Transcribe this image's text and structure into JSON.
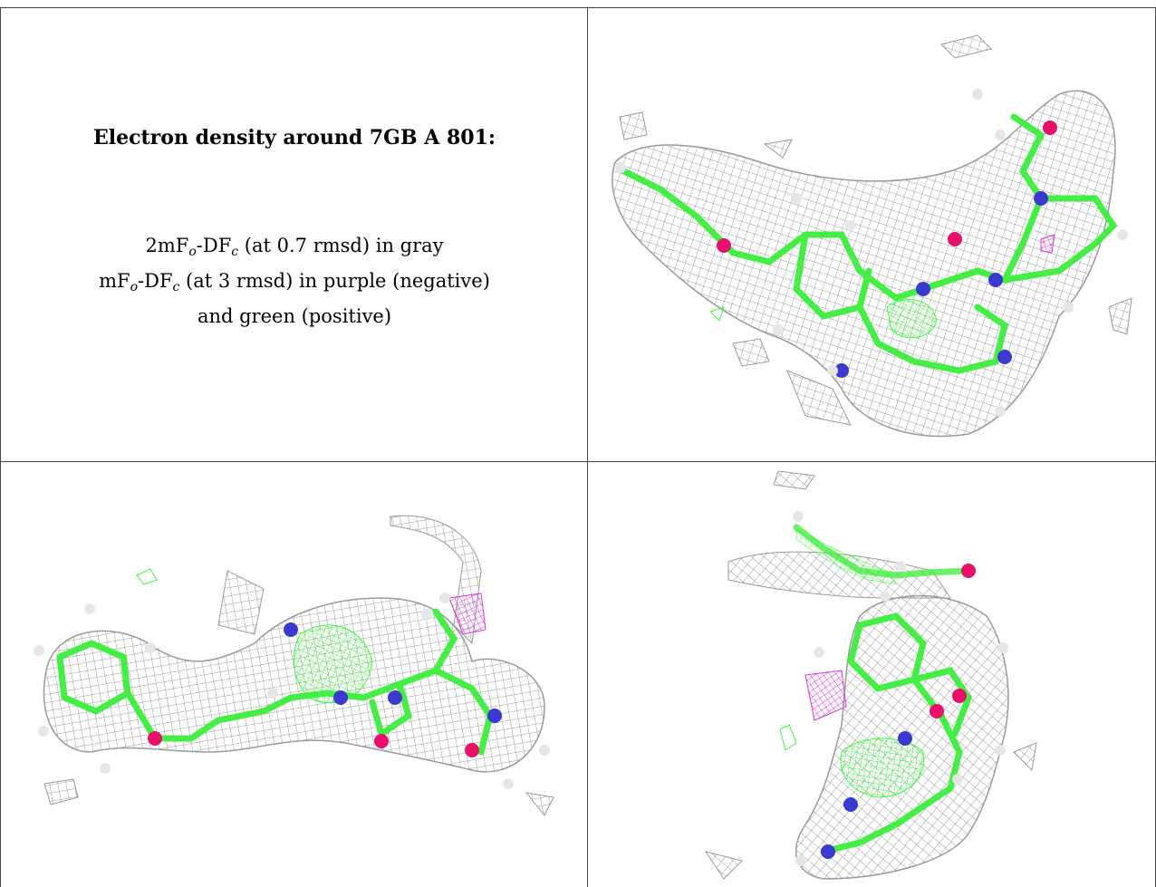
{
  "caption": {
    "title": "Electron density around 7GB A 801:",
    "line1_prefix": "2mF",
    "line1_sub1": "o",
    "line1_mid": "-DF",
    "line1_sub2": "c",
    "line1_suffix": " (at 0.7 rmsd) in gray",
    "line2_prefix": "mF",
    "line2_sub1": "o",
    "line2_mid": "-DF",
    "line2_sub2": "c",
    "line2_suffix": " (at 3 rmsd) in purple (negative)",
    "line3": "and green (positive)"
  },
  "colors": {
    "mesh_gray": "#9a9a9a",
    "positive_green": "#33ff33",
    "negative_purple": "#dd33dd",
    "carbon": "#44ee44",
    "nitrogen": "#3a3ad0",
    "oxygen": "#e8106a",
    "hydrogen": "#e6e6e6",
    "rule": "#444444"
  },
  "panels": [
    {
      "name": "view-1",
      "description_icon": "electron-density-mesh-view"
    },
    {
      "name": "view-2",
      "description_icon": "electron-density-mesh-view"
    },
    {
      "name": "view-3",
      "description_icon": "electron-density-mesh-view"
    }
  ]
}
